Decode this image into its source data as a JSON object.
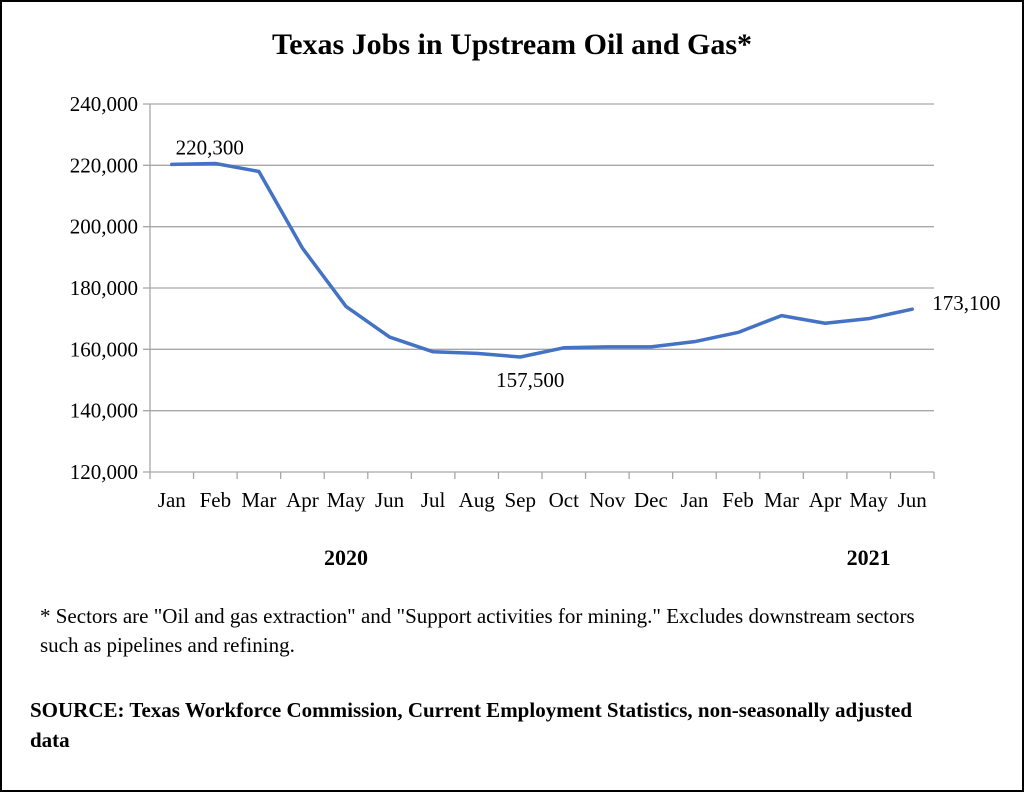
{
  "chart_data": {
    "type": "line",
    "title": "Texas Jobs in Upstream Oil and Gas*",
    "xlabel": "",
    "ylabel": "",
    "categories": [
      "Jan",
      "Feb",
      "Mar",
      "Apr",
      "May",
      "Jun",
      "Jul",
      "Aug",
      "Sep",
      "Oct",
      "Nov",
      "Dec",
      "Jan",
      "Feb",
      "Mar",
      "Apr",
      "May",
      "Jun"
    ],
    "year_labels": [
      {
        "label": "2020",
        "under_index": 4.5
      },
      {
        "label": "2021",
        "under_index": 16.5
      }
    ],
    "series": [
      {
        "name": "Texas Jobs in Upstream Oil and Gas",
        "color": "#4472C4",
        "values": [
          220300,
          220600,
          218000,
          193000,
          174000,
          164000,
          159200,
          158700,
          157500,
          160500,
          160800,
          160800,
          162500,
          165500,
          171000,
          168500,
          170000,
          173100
        ]
      }
    ],
    "data_labels": [
      {
        "index": 0,
        "text": "220,300"
      },
      {
        "index": 8,
        "text": "157,500"
      },
      {
        "index": 17,
        "text": "173,100"
      }
    ],
    "ylim": [
      120000,
      240000
    ],
    "yticks": [
      120000,
      140000,
      160000,
      180000,
      200000,
      220000,
      240000
    ],
    "ytick_labels": [
      "120,000",
      "140,000",
      "160,000",
      "180,000",
      "200,000",
      "220,000",
      "240,000"
    ],
    "grid": true,
    "legend": "none"
  },
  "footnote": "* Sectors are \"Oil and gas extraction\" and \"Support activities for mining.\"  Excludes downstream sectors such as pipelines and refining.",
  "source": "SOURCE: Texas Workforce Commission, Current Employment Statistics, non-seasonally adjusted data"
}
